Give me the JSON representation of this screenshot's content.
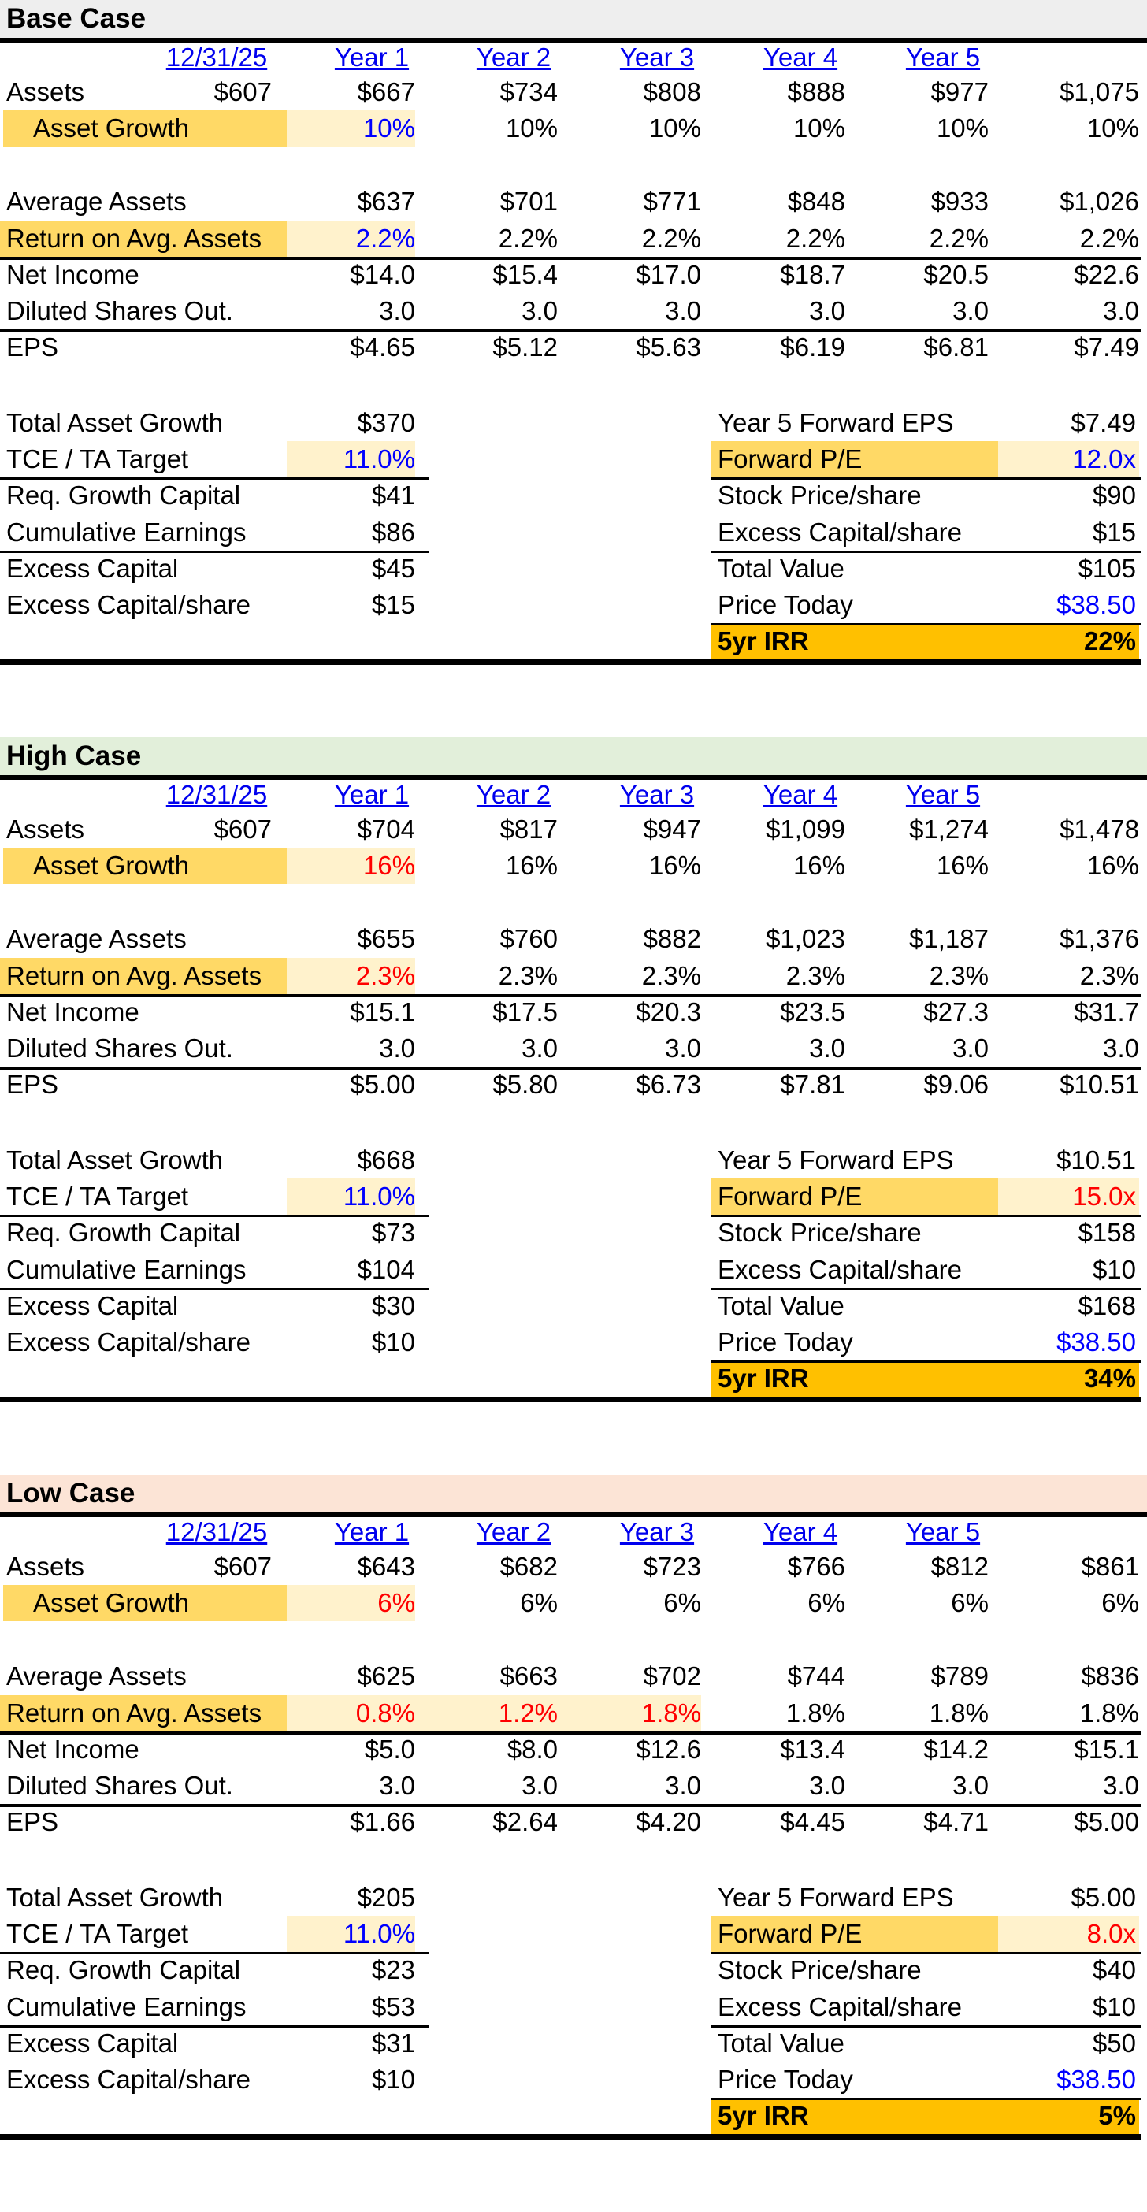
{
  "columns": [
    "12/31/25",
    "Year 1",
    "Year 2",
    "Year 3",
    "Year 4",
    "Year 5"
  ],
  "labels": {
    "assets": "Assets",
    "asset_growth": "Asset Growth",
    "average_assets": "Average Assets",
    "roaa": "Return on Avg. Assets",
    "net_income": "Net Income",
    "diluted_shares": "Diluted Shares Out.",
    "eps": "EPS",
    "total_asset_growth": "Total Asset Growth",
    "tce_ta_target": "TCE / TA Target",
    "req_growth_capital": "Req. Growth Capital",
    "cumulative_earnings": "Cumulative Earnings",
    "excess_capital": "Excess Capital",
    "excess_capital_share": "Excess Capital/share",
    "year5_fwd_eps": "Year 5 Forward EPS",
    "forward_pe": "Forward P/E",
    "stock_price_share": "Stock Price/share",
    "total_value": "Total Value",
    "price_today": "Price Today",
    "irr": "5yr IRR"
  },
  "colors": {
    "input_blue": "#0000ff",
    "scenario_red": "#ff0000",
    "label_highlight": "#ffd966",
    "input_highlight": "#fff2cc",
    "irr_highlight": "#ffc000",
    "base_header": "#eeeeee",
    "high_header": "#e2efda",
    "low_header": "#fce4d6"
  },
  "cases": [
    {
      "title": "Base Case",
      "assets": [
        "$607",
        "$667",
        "$734",
        "$808",
        "$888",
        "$977",
        "$1,075"
      ],
      "asset_growth": [
        "10%",
        "10%",
        "10%",
        "10%",
        "10%",
        "10%"
      ],
      "average_assets": [
        "$637",
        "$701",
        "$771",
        "$848",
        "$933",
        "$1,026"
      ],
      "roaa": [
        "2.2%",
        "2.2%",
        "2.2%",
        "2.2%",
        "2.2%",
        "2.2%"
      ],
      "net_income": [
        "$14.0",
        "$15.4",
        "$17.0",
        "$18.7",
        "$20.5",
        "$22.6"
      ],
      "diluted_shares": [
        "3.0",
        "3.0",
        "3.0",
        "3.0",
        "3.0",
        "3.0"
      ],
      "eps": [
        "$4.65",
        "$5.12",
        "$5.63",
        "$6.19",
        "$6.81",
        "$7.49"
      ],
      "total_asset_growth": "$370",
      "tce_ta_target": "11.0%",
      "req_growth_capital": "$41",
      "cumulative_earnings": "$86",
      "excess_capital": "$45",
      "excess_capital_share": "$15",
      "year5_fwd_eps": "$7.49",
      "forward_pe": "12.0x",
      "stock_price_share": "$90",
      "excess_capital_share_right": "$15",
      "total_value": "$105",
      "price_today": "$38.50",
      "irr": "22%"
    },
    {
      "title": "High Case",
      "assets": [
        "$607",
        "$704",
        "$817",
        "$947",
        "$1,099",
        "$1,274",
        "$1,478"
      ],
      "asset_growth": [
        "16%",
        "16%",
        "16%",
        "16%",
        "16%",
        "16%"
      ],
      "average_assets": [
        "$655",
        "$760",
        "$882",
        "$1,023",
        "$1,187",
        "$1,376"
      ],
      "roaa": [
        "2.3%",
        "2.3%",
        "2.3%",
        "2.3%",
        "2.3%",
        "2.3%"
      ],
      "net_income": [
        "$15.1",
        "$17.5",
        "$20.3",
        "$23.5",
        "$27.3",
        "$31.7"
      ],
      "diluted_shares": [
        "3.0",
        "3.0",
        "3.0",
        "3.0",
        "3.0",
        "3.0"
      ],
      "eps": [
        "$5.00",
        "$5.80",
        "$6.73",
        "$7.81",
        "$9.06",
        "$10.51"
      ],
      "total_asset_growth": "$668",
      "tce_ta_target": "11.0%",
      "req_growth_capital": "$73",
      "cumulative_earnings": "$104",
      "excess_capital": "$30",
      "excess_capital_share": "$10",
      "year5_fwd_eps": "$10.51",
      "forward_pe": "15.0x",
      "stock_price_share": "$158",
      "excess_capital_share_right": "$10",
      "total_value": "$168",
      "price_today": "$38.50",
      "irr": "34%"
    },
    {
      "title": "Low Case",
      "assets": [
        "$607",
        "$643",
        "$682",
        "$723",
        "$766",
        "$812",
        "$861"
      ],
      "asset_growth": [
        "6%",
        "6%",
        "6%",
        "6%",
        "6%",
        "6%"
      ],
      "average_assets": [
        "$625",
        "$663",
        "$702",
        "$744",
        "$789",
        "$836"
      ],
      "roaa": [
        "0.8%",
        "1.2%",
        "1.8%",
        "1.8%",
        "1.8%",
        "1.8%"
      ],
      "net_income": [
        "$5.0",
        "$8.0",
        "$12.6",
        "$13.4",
        "$14.2",
        "$15.1"
      ],
      "diluted_shares": [
        "3.0",
        "3.0",
        "3.0",
        "3.0",
        "3.0",
        "3.0"
      ],
      "eps": [
        "$1.66",
        "$2.64",
        "$4.20",
        "$4.45",
        "$4.71",
        "$5.00"
      ],
      "total_asset_growth": "$205",
      "tce_ta_target": "11.0%",
      "req_growth_capital": "$23",
      "cumulative_earnings": "$53",
      "excess_capital": "$31",
      "excess_capital_share": "$10",
      "year5_fwd_eps": "$5.00",
      "forward_pe": "8.0x",
      "stock_price_share": "$40",
      "excess_capital_share_right": "$10",
      "total_value": "$50",
      "price_today": "$38.50",
      "irr": "5%"
    }
  ]
}
